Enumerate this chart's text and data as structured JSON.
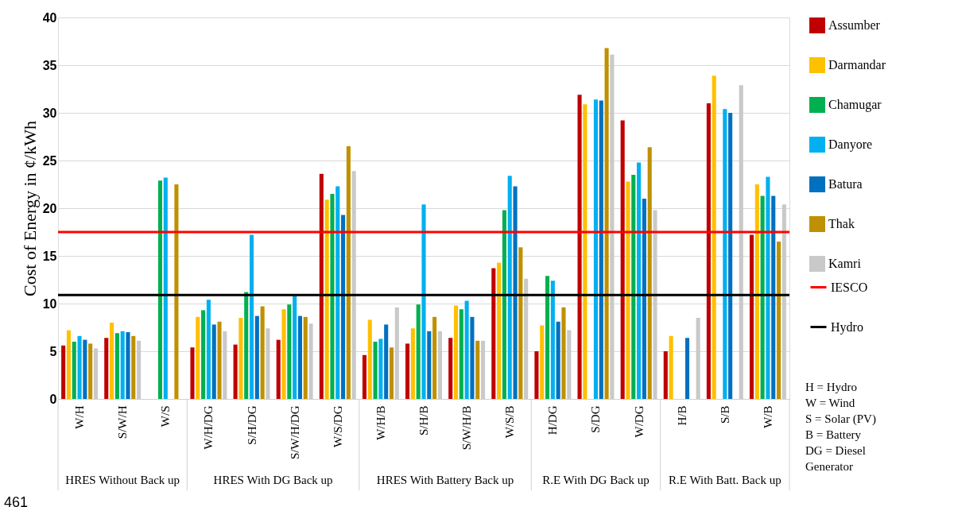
{
  "chart_data": {
    "type": "bar",
    "ylabel": "Cost of Energy in ¢/kWh",
    "categories": [
      "W/H",
      "S/W/H",
      "W/S",
      "W/H/DG",
      "S/H/DG",
      "S/W/H/DG",
      "W/S/DG",
      "W/H/B",
      "S/H/B",
      "S/W/H/B",
      "W/S/B",
      "H/DG",
      "S/DG",
      "W/DG",
      "H/B",
      "S/B",
      "W/B"
    ],
    "series": [
      {
        "name": "Assumber",
        "color": "#c00000",
        "values": [
          5.6,
          6.4,
          null,
          5.4,
          5.7,
          6.2,
          23.6,
          4.6,
          5.8,
          6.4,
          13.7,
          5.0,
          31.9,
          29.2,
          5.0,
          31.0,
          17.2
        ]
      },
      {
        "name": "Darmandar",
        "color": "#ffc000",
        "values": [
          7.2,
          8.0,
          null,
          8.6,
          8.5,
          9.4,
          20.9,
          8.3,
          7.4,
          9.8,
          14.3,
          7.7,
          30.9,
          22.8,
          6.6,
          33.9,
          22.5
        ]
      },
      {
        "name": "Chamugar",
        "color": "#00b050",
        "values": [
          6.0,
          6.9,
          22.9,
          9.3,
          11.2,
          9.9,
          21.5,
          6.0,
          9.9,
          9.4,
          19.8,
          12.9,
          null,
          23.5,
          null,
          null,
          21.3
        ]
      },
      {
        "name": "Danyore",
        "color": "#00b0f0",
        "values": [
          6.6,
          7.1,
          23.2,
          10.4,
          17.2,
          10.9,
          22.3,
          6.3,
          20.4,
          10.3,
          23.4,
          12.4,
          31.4,
          24.8,
          null,
          30.4,
          23.3
        ]
      },
      {
        "name": "Batura",
        "color": "#0070c0",
        "values": [
          6.2,
          7.0,
          null,
          7.8,
          8.7,
          8.7,
          19.3,
          7.8,
          7.1,
          8.6,
          22.3,
          8.1,
          31.3,
          21.0,
          6.4,
          30.0,
          21.3
        ]
      },
      {
        "name": "Thak",
        "color": "#bf9000",
        "values": [
          5.8,
          6.6,
          22.5,
          8.1,
          9.7,
          8.6,
          26.5,
          5.4,
          8.6,
          6.1,
          15.9,
          9.6,
          36.8,
          26.4,
          null,
          null,
          16.5
        ]
      },
      {
        "name": "Kamri",
        "color": "#c9c9c9",
        "values": [
          5.3,
          6.1,
          null,
          7.1,
          7.4,
          7.9,
          23.9,
          9.6,
          7.1,
          6.1,
          12.6,
          7.2,
          36.1,
          19.8,
          8.5,
          32.9,
          20.4
        ]
      }
    ],
    "ref_lines": [
      {
        "axis": "y",
        "value": 17.5,
        "label": "IESCO",
        "color": "#ff0000"
      },
      {
        "axis": "y",
        "value": 10.9,
        "label": "Hydro",
        "color": "#000000"
      }
    ],
    "ylim": [
      0,
      40
    ],
    "yticks": [
      0,
      5,
      10,
      15,
      20,
      25,
      30,
      35,
      40
    ],
    "grid": "y",
    "legend": "right",
    "annotations": [
      "HRES Without Back up",
      "HRES With DG Back up",
      "HRES With Battery Back up",
      "R.E With DG Back up",
      "R.E With Batt. Back up",
      "H  = Hydro\nW = Wind\nS  = Solar (PV)\nB  = Battery\nDG = Diesel\nGenerator",
      "461"
    ]
  }
}
